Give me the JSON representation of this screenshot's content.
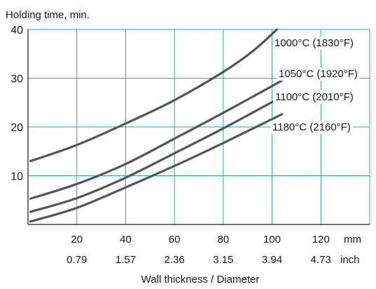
{
  "chart_data": {
    "type": "line",
    "ylabel": "Holding time, min.",
    "xlabel": "Wall thickness / Diameter",
    "x_unit_primary": "mm",
    "x_unit_secondary": "inch",
    "xlim": [
      0,
      140
    ],
    "ylim": [
      0,
      40
    ],
    "x_ticks_mm": [
      "20",
      "40",
      "60",
      "80",
      "100",
      "120"
    ],
    "x_ticks_inch": [
      "0.79",
      "1.57",
      "2.36",
      "3.15",
      "3.94",
      "4.73"
    ],
    "y_ticks": [
      "10",
      "20",
      "30",
      "40"
    ],
    "grid": true,
    "colors": {
      "grid": "#2aa0d8",
      "line": "#555555",
      "axis": "#1a1a1a"
    },
    "series": [
      {
        "name": "1000°C (1830°F)",
        "x": [
          1,
          20,
          40,
          60,
          80,
          92,
          102
        ],
        "y": [
          13,
          16.3,
          20.7,
          25.5,
          31.3,
          35.5,
          40
        ]
      },
      {
        "name": "1050°C (1920°F)",
        "x": [
          1,
          20,
          40,
          60,
          80,
          104
        ],
        "y": [
          5.3,
          8.3,
          12.4,
          17.6,
          22.9,
          29.5
        ]
      },
      {
        "name": "1100°C (2010°F)",
        "x": [
          1,
          20,
          40,
          60,
          80,
          104
        ],
        "y": [
          2.6,
          5.4,
          9.6,
          14.6,
          19.7,
          26.2
        ]
      },
      {
        "name": "1180°C (2160°F)",
        "x": [
          1,
          20,
          40,
          60,
          80,
          104
        ],
        "y": [
          0.6,
          3.4,
          7.6,
          12.0,
          16.7,
          22.6
        ]
      }
    ]
  }
}
